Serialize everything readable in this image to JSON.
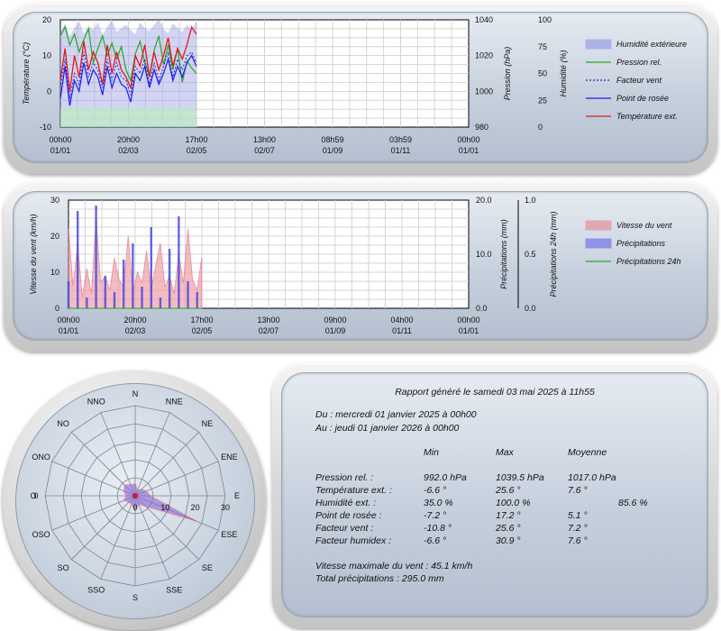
{
  "chart_data": [
    {
      "type": "line",
      "x_ticks": [
        {
          "time": "00h00",
          "date": "01/01"
        },
        {
          "time": "20h00",
          "date": "02/03"
        },
        {
          "time": "17h00",
          "date": "02/05"
        },
        {
          "time": "13h00",
          "date": "02/07"
        },
        {
          "time": "08h59",
          "date": "01/09"
        },
        {
          "time": "03h59",
          "date": "01/11"
        },
        {
          "time": "00h00",
          "date": "01/01"
        }
      ],
      "ylabel_left": "Température (°C)",
      "ylabel_right1": "Pression (hPa)",
      "ylabel_right2": "Humidité (%)",
      "ylim_left": [
        -10,
        20
      ],
      "ylim_pressure": [
        980,
        1040
      ],
      "ylim_humidity": [
        0,
        100
      ],
      "yticks_left": [
        "20",
        "10",
        "0",
        "-10"
      ],
      "yticks_pressure": [
        "1040",
        "1020",
        "1000",
        "980"
      ],
      "yticks_humidity": [
        "100",
        "75",
        "50",
        "25",
        "0"
      ],
      "data_extent_fraction": 0.333,
      "legend": [
        {
          "label": "Humidité extérieure",
          "color": "#8a8ee0",
          "style": "area"
        },
        {
          "label": "Pression rel.",
          "color": "#22aa22",
          "style": "line"
        },
        {
          "label": "Facteur vent",
          "color": "#2222cc",
          "style": "dotted"
        },
        {
          "label": "Point de rosée",
          "color": "#1a1aee",
          "style": "line"
        },
        {
          "label": "Température ext.",
          "color": "#e01a1a",
          "style": "line"
        }
      ],
      "series": [
        {
          "name": "Humidité extérieure",
          "values": [
            88,
            96,
            84,
            92,
            98,
            86,
            94,
            90,
            97,
            85,
            93,
            99,
            88,
            92,
            95,
            90,
            86,
            97,
            92,
            89,
            95,
            100,
            91,
            87,
            96,
            92,
            88,
            95,
            90,
            98
          ]
        },
        {
          "name": "Pression rel.",
          "values": [
            1031,
            1036,
            1026,
            1032,
            1022,
            1029,
            1035,
            1016,
            1024,
            1031,
            1020,
            1027,
            1018,
            1025,
            1012,
            1006,
            1021,
            1028,
            1016,
            1009,
            1023,
            1031,
            1015,
            1026,
            1012,
            1024,
            1005,
            1017,
            1013,
            1010
          ]
        },
        {
          "name": "Facteur vent",
          "values": [
            1,
            9,
            -2,
            5,
            2,
            11,
            4,
            8,
            6,
            1,
            9,
            3,
            8,
            4,
            3,
            -1,
            7,
            5,
            9,
            2,
            8,
            3,
            7,
            11,
            4,
            9,
            6,
            10,
            11,
            8
          ]
        },
        {
          "name": "Point de rosée",
          "values": [
            -2,
            7,
            -4,
            3,
            0,
            8,
            2,
            6,
            4,
            -1,
            7,
            1,
            5,
            2,
            1,
            -3,
            5,
            3,
            7,
            1,
            6,
            2,
            5,
            9,
            3,
            7,
            4,
            8,
            10,
            7
          ]
        },
        {
          "name": "Température ext.",
          "values": [
            3,
            12,
            0,
            10,
            4,
            14,
            6,
            11,
            8,
            2,
            13,
            5,
            11,
            6,
            4,
            1,
            10,
            7,
            13,
            4,
            11,
            6,
            10,
            15,
            7,
            12,
            9,
            13,
            18,
            16
          ]
        }
      ]
    },
    {
      "type": "bar",
      "x_ticks": [
        {
          "time": "00h00",
          "date": "01/01"
        },
        {
          "time": "20h00",
          "date": "02/03"
        },
        {
          "time": "17h00",
          "date": "02/05"
        },
        {
          "time": "13h00",
          "date": "02/07"
        },
        {
          "time": "09h00",
          "date": "01/09"
        },
        {
          "time": "04h00",
          "date": "01/11"
        },
        {
          "time": "00h00",
          "date": "01/01"
        }
      ],
      "ylabel_left": "Vitesse du vent (km/h)",
      "ylabel_right1": "Précipitations (mm)",
      "ylabel_right2": "Précipitations 24h (mm)",
      "ylim_left": [
        0,
        30
      ],
      "ylim_precip": [
        0,
        20
      ],
      "ylim_precip24": [
        0,
        1
      ],
      "yticks_left": [
        "30",
        "20",
        "10",
        "0"
      ],
      "yticks_precip": [
        "20.0",
        "10.0",
        "0.0"
      ],
      "yticks_precip24": [
        "1.0",
        "0.5",
        "0.0"
      ],
      "data_extent_fraction": 0.333,
      "legend": [
        {
          "label": "Vitesse du vent",
          "color": "#e87a86",
          "style": "area"
        },
        {
          "label": "Précipitations",
          "color": "#5a5ae8",
          "style": "area"
        },
        {
          "label": "Précipitations 24h",
          "color": "#22aa22",
          "style": "line"
        }
      ],
      "series": [
        {
          "name": "Vitesse du vent",
          "values": [
            22,
            6,
            18,
            3,
            11,
            4,
            25,
            7,
            9,
            5,
            14,
            8,
            6,
            20,
            4,
            10,
            7,
            16,
            5,
            12,
            18,
            6,
            9,
            4,
            15,
            7,
            22,
            8,
            5,
            14
          ]
        },
        {
          "name": "Précipitations",
          "values": [
            5,
            0,
            18,
            0,
            2,
            0,
            19,
            0,
            6,
            0,
            3,
            0,
            9,
            0,
            12,
            0,
            4,
            0,
            15,
            0,
            2,
            0,
            11,
            0,
            17,
            0,
            5,
            0,
            3,
            0
          ]
        },
        {
          "name": "Précipitations 24h",
          "values": [
            0,
            0,
            0,
            0,
            0,
            0,
            0,
            0,
            0,
            0,
            0,
            0,
            0,
            0,
            0,
            0,
            0,
            0,
            0,
            0,
            0,
            0,
            0,
            0,
            0,
            0,
            0,
            0,
            0,
            0
          ]
        }
      ]
    },
    {
      "type": "radar",
      "directions": [
        "N",
        "NNE",
        "NE",
        "ENE",
        "E",
        "ESE",
        "SE",
        "SSE",
        "S",
        "SSO",
        "SO",
        "OSO",
        "O",
        "ONO",
        "NO",
        "NNO"
      ],
      "radial_ticks": [
        "0",
        "10",
        "20",
        "30"
      ],
      "rmax": 30,
      "values": [
        4,
        2,
        3,
        4,
        5,
        22,
        5,
        3,
        5,
        3,
        3,
        4,
        3,
        4,
        5,
        4
      ]
    }
  ],
  "report": {
    "title": "Rapport généré le samedi 03 mai 2025 à 11h55",
    "from": "Du : mercredi 01 janvier 2025 à 00h00",
    "to": "Au : jeudi 01 janvier 2026 à 00h00",
    "headers": [
      "Min",
      "Max",
      "Moyenne"
    ],
    "rows": [
      {
        "label": "Pression rel. :",
        "min": "992.0 hPa",
        "max": "1039.5 hPa",
        "avg": "1017.0 hPa"
      },
      {
        "label": "Température ext. :",
        "min": "-6.6 °",
        "max": "25.6 °",
        "avg": "7.6 °"
      },
      {
        "label": "Humidité ext. :",
        "min": "35.0 %",
        "max": "100.0 %",
        "avg": "85.6 %"
      },
      {
        "label": "Point de rosée :",
        "min": "-7.2 °",
        "max": "17.2 °",
        "avg": "5.1 °"
      },
      {
        "label": "Facteur vent :",
        "min": "-10.8 °",
        "max": "25.6 °",
        "avg": "7.2 °"
      },
      {
        "label": "Facteur humidex :",
        "min": "-6.6 °",
        "max": "30.9 °",
        "avg": "7.6 °"
      }
    ],
    "max_wind": "Vitesse maximale du vent : 45.1 km/h",
    "total_precip": "Total précipitations : 295.0 mm"
  }
}
